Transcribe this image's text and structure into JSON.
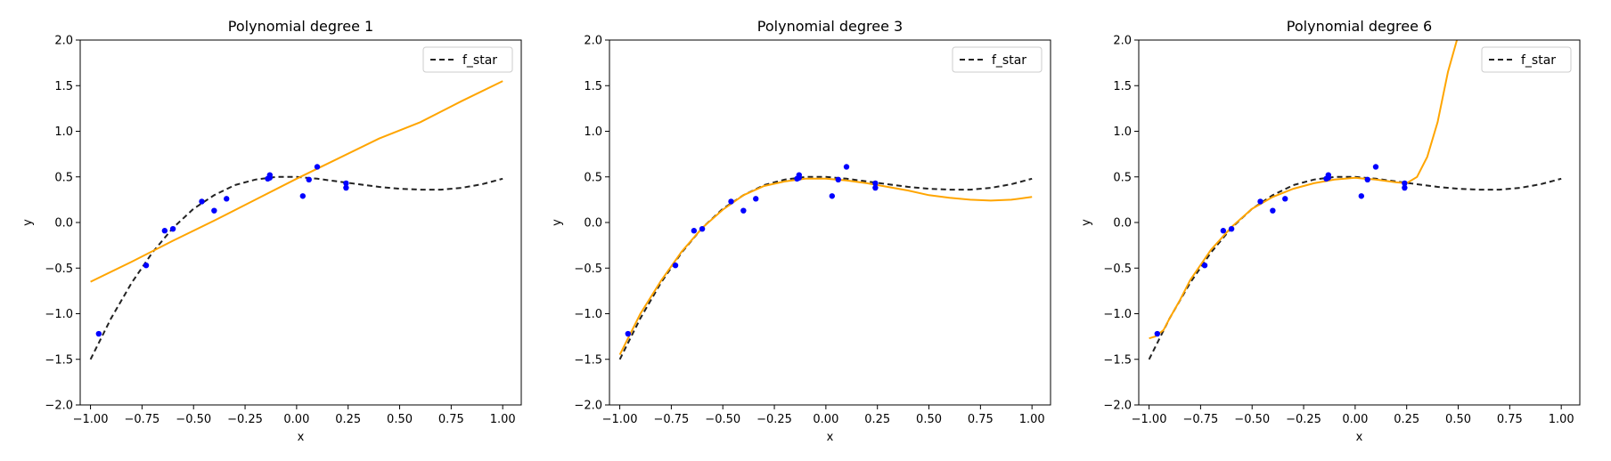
{
  "chart_data": [
    {
      "type": "line",
      "title": "Polynomial degree 1",
      "xlabel": "x",
      "ylabel": "y",
      "xlim": [
        -1.05,
        1.09
      ],
      "ylim": [
        -2.0,
        2.0
      ],
      "xticks": [
        -1.0,
        -0.75,
        -0.5,
        -0.25,
        0.0,
        0.25,
        0.5,
        0.75,
        1.0
      ],
      "xtick_labels": [
        "−1.00",
        "−0.75",
        "−0.50",
        "−0.25",
        "0.00",
        "0.25",
        "0.50",
        "0.75",
        "1.00"
      ],
      "yticks": [
        -2.0,
        -1.5,
        -1.0,
        -0.5,
        0.0,
        0.5,
        1.0,
        1.5,
        2.0
      ],
      "ytick_labels": [
        "−2.0",
        "−1.5",
        "−1.0",
        "−0.5",
        "0.0",
        "0.5",
        "1.0",
        "1.5",
        "2.0"
      ],
      "legend": {
        "position": "top-right",
        "entries": [
          "f_star"
        ]
      },
      "colors": {
        "true_fn": "#222222",
        "fit": "#ffa500",
        "points": "#0000ff"
      },
      "true_function": {
        "name": "f_star",
        "x": [
          -1.0,
          -0.9,
          -0.8,
          -0.7,
          -0.6,
          -0.5,
          -0.4,
          -0.3,
          -0.2,
          -0.1,
          0.0,
          0.1,
          0.2,
          0.3,
          0.4,
          0.5,
          0.6,
          0.7,
          0.8,
          0.9,
          1.0
        ],
        "y": [
          -1.5,
          -1.05,
          -0.66,
          -0.33,
          -0.06,
          0.15,
          0.3,
          0.41,
          0.47,
          0.5,
          0.5,
          0.48,
          0.45,
          0.42,
          0.39,
          0.37,
          0.36,
          0.36,
          0.38,
          0.42,
          0.48
        ]
      },
      "fit": {
        "x": [
          -1.0,
          -0.8,
          -0.6,
          -0.4,
          -0.2,
          0.0,
          0.2,
          0.4,
          0.6,
          0.8,
          1.0
        ],
        "y": [
          -0.65,
          -0.43,
          -0.2,
          0.02,
          0.25,
          0.48,
          0.7,
          0.92,
          1.1,
          1.33,
          1.55
        ]
      },
      "points": {
        "x": [
          -0.96,
          -0.73,
          -0.64,
          -0.6,
          -0.46,
          -0.4,
          -0.34,
          -0.14,
          -0.13,
          -0.13,
          0.03,
          0.06,
          0.1,
          0.24,
          0.24
        ],
        "y": [
          -1.22,
          -0.47,
          -0.09,
          -0.07,
          0.23,
          0.13,
          0.26,
          0.48,
          0.52,
          0.49,
          0.29,
          0.47,
          0.61,
          0.38,
          0.43
        ]
      }
    },
    {
      "type": "line",
      "title": "Polynomial degree 3",
      "xlabel": "x",
      "ylabel": "y",
      "xlim": [
        -1.05,
        1.09
      ],
      "ylim": [
        -2.0,
        2.0
      ],
      "xticks": [
        -1.0,
        -0.75,
        -0.5,
        -0.25,
        0.0,
        0.25,
        0.5,
        0.75,
        1.0
      ],
      "xtick_labels": [
        "−1.00",
        "−0.75",
        "−0.50",
        "−0.25",
        "0.00",
        "0.25",
        "0.50",
        "0.75",
        "1.00"
      ],
      "yticks": [
        -2.0,
        -1.5,
        -1.0,
        -0.5,
        0.0,
        0.5,
        1.0,
        1.5,
        2.0
      ],
      "ytick_labels": [
        "−2.0",
        "−1.5",
        "−1.0",
        "−0.5",
        "0.0",
        "0.5",
        "1.0",
        "1.5",
        "2.0"
      ],
      "legend": {
        "position": "top-right",
        "entries": [
          "f_star"
        ]
      },
      "colors": {
        "true_fn": "#222222",
        "fit": "#ffa500",
        "points": "#0000ff"
      },
      "true_function": {
        "name": "f_star",
        "x": [
          -1.0,
          -0.9,
          -0.8,
          -0.7,
          -0.6,
          -0.5,
          -0.4,
          -0.3,
          -0.2,
          -0.1,
          0.0,
          0.1,
          0.2,
          0.3,
          0.4,
          0.5,
          0.6,
          0.7,
          0.8,
          0.9,
          1.0
        ],
        "y": [
          -1.5,
          -1.05,
          -0.66,
          -0.33,
          -0.06,
          0.15,
          0.3,
          0.41,
          0.47,
          0.5,
          0.5,
          0.48,
          0.45,
          0.42,
          0.39,
          0.37,
          0.36,
          0.36,
          0.38,
          0.42,
          0.48
        ]
      },
      "fit": {
        "x": [
          -1.0,
          -0.9,
          -0.8,
          -0.7,
          -0.6,
          -0.5,
          -0.4,
          -0.3,
          -0.2,
          -0.1,
          0.0,
          0.1,
          0.2,
          0.3,
          0.4,
          0.5,
          0.6,
          0.7,
          0.8,
          0.9,
          1.0
        ],
        "y": [
          -1.45,
          -1.0,
          -0.64,
          -0.32,
          -0.06,
          0.14,
          0.3,
          0.4,
          0.45,
          0.48,
          0.48,
          0.46,
          0.43,
          0.39,
          0.35,
          0.3,
          0.27,
          0.25,
          0.24,
          0.25,
          0.28
        ]
      },
      "points": {
        "x": [
          -0.96,
          -0.73,
          -0.64,
          -0.6,
          -0.46,
          -0.4,
          -0.34,
          -0.14,
          -0.13,
          -0.13,
          0.03,
          0.06,
          0.1,
          0.24,
          0.24
        ],
        "y": [
          -1.22,
          -0.47,
          -0.09,
          -0.07,
          0.23,
          0.13,
          0.26,
          0.48,
          0.52,
          0.49,
          0.29,
          0.47,
          0.61,
          0.38,
          0.43
        ]
      }
    },
    {
      "type": "line",
      "title": "Polynomial degree 6",
      "xlabel": "x",
      "ylabel": "y",
      "xlim": [
        -1.05,
        1.09
      ],
      "ylim": [
        -2.0,
        2.0
      ],
      "xticks": [
        -1.0,
        -0.75,
        -0.5,
        -0.25,
        0.0,
        0.25,
        0.5,
        0.75,
        1.0
      ],
      "xtick_labels": [
        "−1.00",
        "−0.75",
        "−0.50",
        "−0.25",
        "0.00",
        "0.25",
        "0.50",
        "0.75",
        "1.00"
      ],
      "yticks": [
        -2.0,
        -1.5,
        -1.0,
        -0.5,
        0.0,
        0.5,
        1.0,
        1.5,
        2.0
      ],
      "ytick_labels": [
        "−2.0",
        "−1.5",
        "−1.0",
        "−0.5",
        "0.0",
        "0.5",
        "1.0",
        "1.5",
        "2.0"
      ],
      "legend": {
        "position": "top-right",
        "entries": [
          "f_star"
        ]
      },
      "colors": {
        "true_fn": "#222222",
        "fit": "#ffa500",
        "points": "#0000ff"
      },
      "true_function": {
        "name": "f_star",
        "x": [
          -1.0,
          -0.9,
          -0.8,
          -0.7,
          -0.6,
          -0.5,
          -0.4,
          -0.3,
          -0.2,
          -0.1,
          0.0,
          0.1,
          0.2,
          0.3,
          0.4,
          0.5,
          0.6,
          0.7,
          0.8,
          0.9,
          1.0
        ],
        "y": [
          -1.5,
          -1.05,
          -0.66,
          -0.33,
          -0.06,
          0.15,
          0.3,
          0.41,
          0.47,
          0.5,
          0.5,
          0.48,
          0.45,
          0.42,
          0.39,
          0.37,
          0.36,
          0.36,
          0.38,
          0.42,
          0.48
        ]
      },
      "fit": {
        "x": [
          -1.0,
          -0.97,
          -0.93,
          -0.9,
          -0.85,
          -0.8,
          -0.7,
          -0.6,
          -0.5,
          -0.4,
          -0.3,
          -0.2,
          -0.1,
          0.0,
          0.1,
          0.2,
          0.25,
          0.3,
          0.35,
          0.4,
          0.45,
          0.5
        ],
        "y": [
          -1.27,
          -1.25,
          -1.18,
          -1.05,
          -0.85,
          -0.63,
          -0.3,
          -0.05,
          0.15,
          0.28,
          0.37,
          0.43,
          0.47,
          0.49,
          0.47,
          0.44,
          0.43,
          0.5,
          0.72,
          1.1,
          1.65,
          2.05
        ]
      },
      "points": {
        "x": [
          -0.96,
          -0.73,
          -0.64,
          -0.6,
          -0.46,
          -0.4,
          -0.34,
          -0.14,
          -0.13,
          -0.13,
          0.03,
          0.06,
          0.1,
          0.24,
          0.24
        ],
        "y": [
          -1.22,
          -0.47,
          -0.09,
          -0.07,
          0.23,
          0.13,
          0.26,
          0.48,
          0.52,
          0.49,
          0.29,
          0.47,
          0.61,
          0.38,
          0.43
        ]
      }
    }
  ]
}
